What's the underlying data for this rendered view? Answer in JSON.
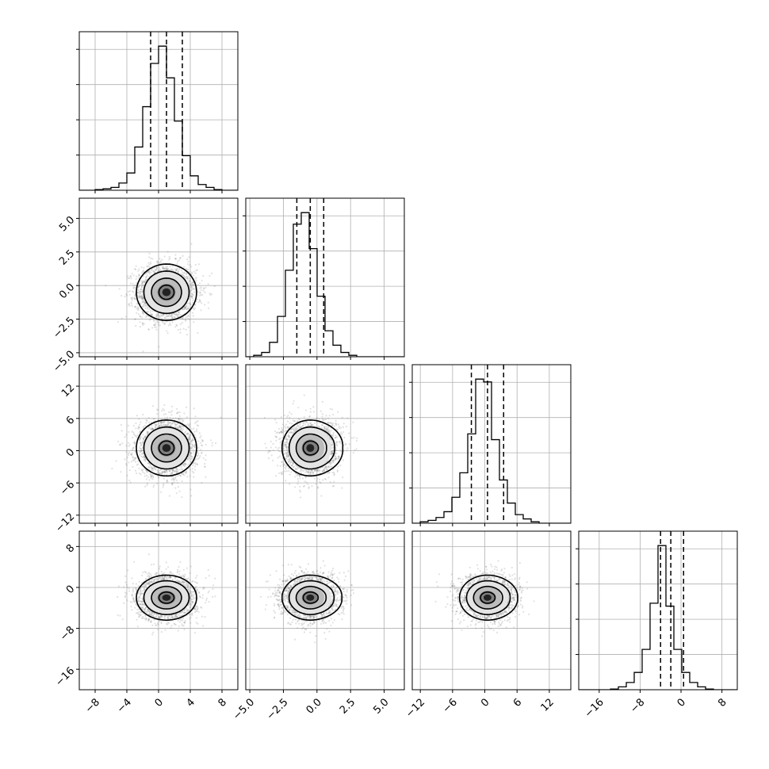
{
  "chart_data": {
    "type": "corner",
    "grid": true,
    "quantile_lines": "dashed",
    "parameters": [
      {
        "range": [
          -10,
          10
        ],
        "ticks": [
          -8,
          -4,
          0,
          4,
          8
        ],
        "tick_labels": [
          "−8",
          "−4",
          "0",
          "4",
          "8"
        ],
        "quantiles": [
          -1,
          1,
          3
        ],
        "hist_bin_edges": [
          -10,
          -9,
          -8,
          -7,
          -6,
          -5,
          -4,
          -3,
          -2,
          -1,
          0,
          1,
          2,
          3,
          4,
          5,
          6,
          7,
          8,
          9,
          10
        ],
        "hist_counts": [
          0,
          0,
          0.005,
          0.01,
          0.02,
          0.05,
          0.12,
          0.3,
          0.58,
          0.88,
          1.0,
          0.78,
          0.48,
          0.24,
          0.1,
          0.04,
          0.02,
          0.005,
          0,
          0
        ]
      },
      {
        "range": [
          -5.3,
          6.5
        ],
        "ticks": [
          -5.0,
          -2.5,
          0.0,
          2.5,
          5.0
        ],
        "tick_labels": [
          "−5.0",
          "−2.5",
          "0.0",
          "2.5",
          "5.0"
        ],
        "quantiles": [
          -1.5,
          -0.5,
          0.5
        ],
        "hist_bin_edges": [
          -5.3,
          -4.71,
          -4.12,
          -3.53,
          -2.94,
          -2.35,
          -1.76,
          -1.17,
          -0.58,
          0.01,
          0.6,
          1.19,
          1.78,
          2.37,
          2.96,
          3.55,
          4.14,
          4.73,
          5.32,
          5.91,
          6.5
        ],
        "hist_counts": [
          0,
          0.01,
          0.03,
          0.1,
          0.28,
          0.6,
          0.92,
          1.0,
          0.75,
          0.42,
          0.18,
          0.08,
          0.03,
          0.01,
          0,
          0,
          0,
          0,
          0,
          0
        ]
      },
      {
        "range": [
          -13.5,
          16
        ],
        "ticks": [
          -12,
          -6,
          0,
          6,
          12
        ],
        "tick_labels": [
          "−12",
          "−6",
          "0",
          "6",
          "12"
        ],
        "quantiles": [
          -2.5,
          0.5,
          3.5
        ],
        "hist_bin_edges": [
          -13.5,
          -12.025,
          -10.55,
          -9.075,
          -7.6,
          -6.125,
          -4.65,
          -3.175,
          -1.7,
          -0.225,
          1.25,
          2.725,
          4.2,
          5.675,
          7.15,
          8.625,
          10.1,
          11.575,
          13.05,
          14.525,
          16
        ],
        "hist_counts": [
          0,
          0.01,
          0.02,
          0.04,
          0.08,
          0.18,
          0.35,
          0.62,
          1.0,
          0.98,
          0.58,
          0.3,
          0.14,
          0.06,
          0.03,
          0.01,
          0,
          0,
          0,
          0
        ]
      },
      {
        "range": [
          -20,
          11
        ],
        "ticks": [
          -16,
          -8,
          0,
          8
        ],
        "tick_labels": [
          "−16",
          "−8",
          "0",
          "8"
        ],
        "quantiles": [
          -4,
          -2,
          0.5
        ],
        "hist_bin_edges": [
          -20,
          -18.45,
          -16.9,
          -15.35,
          -13.8,
          -12.25,
          -10.7,
          -9.15,
          -7.6,
          -6.05,
          -4.5,
          -2.95,
          -1.4,
          0.15,
          1.7,
          3.25,
          4.8,
          6.35,
          7.9,
          9.45,
          11
        ],
        "hist_counts": [
          0,
          0,
          0,
          0,
          0.005,
          0.02,
          0.05,
          0.12,
          0.28,
          0.6,
          1.0,
          0.58,
          0.28,
          0.12,
          0.05,
          0.02,
          0.005,
          0,
          0,
          0
        ]
      }
    ],
    "pairs": [
      {
        "x": 0,
        "y": 1,
        "center": [
          1,
          -0.5
        ],
        "spread": [
          1.9,
          1.05
        ],
        "tilt": 0
      },
      {
        "x": 0,
        "y": 2,
        "center": [
          1,
          0.5
        ],
        "spread": [
          1.9,
          2.6
        ],
        "tilt": 0
      },
      {
        "x": 1,
        "y": 2,
        "center": [
          -0.5,
          0.5
        ],
        "spread": [
          1.05,
          2.6
        ],
        "tilt": 0.15
      },
      {
        "x": 0,
        "y": 3,
        "center": [
          1,
          -2
        ],
        "spread": [
          1.9,
          2.2
        ],
        "tilt": 0
      },
      {
        "x": 1,
        "y": 3,
        "center": [
          -0.5,
          -2
        ],
        "spread": [
          1.05,
          2.2
        ],
        "tilt": 0.12
      },
      {
        "x": 2,
        "y": 3,
        "center": [
          0.5,
          -2
        ],
        "spread": [
          2.6,
          2.2
        ],
        "tilt": 0.08
      }
    ],
    "contour_levels_sigma": [
      0.5,
      1.0,
      1.5,
      2.0
    ]
  }
}
